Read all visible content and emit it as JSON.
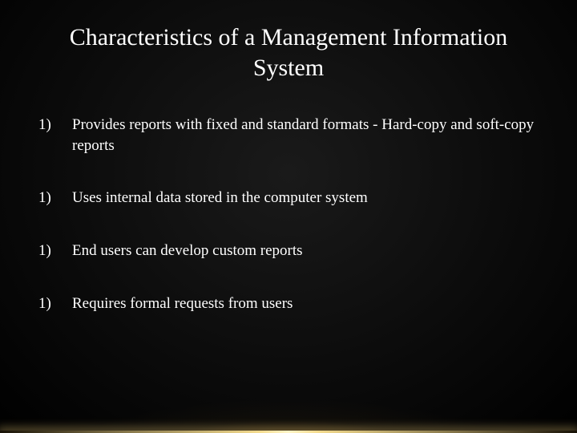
{
  "slide": {
    "title": "Characteristics of a Management Information System",
    "title_fontsize": 30,
    "title_color": "#ffffff",
    "body_fontsize": 19,
    "body_color": "#ffffff",
    "background_color": "#0a0a0a",
    "glow_color_inner": "#ffe696",
    "glow_color_mid": "#f5c85a",
    "font_family": "Times New Roman",
    "items": [
      {
        "marker": "1)",
        "text": "Provides reports with fixed and standard formats - Hard-copy and soft-copy reports"
      },
      {
        "marker": "1)",
        "text": "Uses internal data stored in the computer system"
      },
      {
        "marker": "1)",
        "text": "End users can develop custom reports"
      },
      {
        "marker": "1)",
        "text": "Requires formal requests from users"
      }
    ]
  }
}
